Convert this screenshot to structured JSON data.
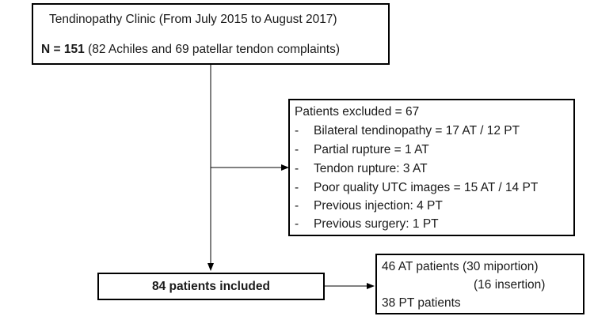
{
  "clinic_box": {
    "title": "Tendinopathy Clinic (From July 2015 to August 2017)",
    "n_label": "N = 151",
    "n_detail": "(82 Achiles and 69 patellar tendon complaints)"
  },
  "excluded_box": {
    "header": "Patients excluded = 67",
    "items": [
      "Bilateral tendinopathy = 17 AT / 12 PT",
      "Partial rupture = 1 AT",
      "Tendon rupture: 3 AT",
      "Poor quality UTC images = 15 AT / 14 PT",
      "Previous injection: 4 PT",
      "Previous surgery: 1 PT"
    ],
    "bullet": "-"
  },
  "included_box": {
    "label": "84 patients included"
  },
  "result_box": {
    "line1": "46 AT patients (30 miportion)",
    "line2": "(16 insertion)",
    "line3": "38 PT patients"
  }
}
